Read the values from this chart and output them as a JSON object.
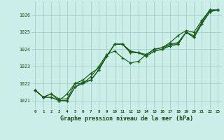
{
  "title": "Graphe pression niveau de la mer (hPa)",
  "bg_color": "#cceee8",
  "grid_color": "#aad4ce",
  "line_color": "#1a5c1a",
  "xlim": [
    -0.5,
    23.5
  ],
  "ylim": [
    1020.5,
    1026.8
  ],
  "yticks": [
    1021,
    1022,
    1023,
    1024,
    1025,
    1026
  ],
  "xticks": [
    0,
    1,
    2,
    3,
    4,
    5,
    6,
    7,
    8,
    9,
    10,
    11,
    12,
    13,
    14,
    15,
    16,
    17,
    18,
    19,
    20,
    21,
    22,
    23
  ],
  "series": [
    [
      1021.6,
      1021.2,
      1021.4,
      1021.0,
      1021.4,
      1022.0,
      1022.2,
      1022.6,
      1022.9,
      1023.6,
      1024.3,
      1024.3,
      1023.8,
      1023.8,
      1023.6,
      1023.9,
      1024.0,
      1024.3,
      1024.3,
      1025.0,
      1024.7,
      1025.5,
      1026.2,
      1026.3
    ],
    [
      1021.6,
      1021.2,
      1021.2,
      1021.0,
      1021.0,
      1021.8,
      1022.0,
      1022.2,
      1022.8,
      1023.6,
      1024.3,
      1024.3,
      1023.9,
      1023.8,
      1023.7,
      1024.0,
      1024.1,
      1024.3,
      1024.4,
      1025.0,
      1024.8,
      1025.6,
      1026.3,
      1026.3
    ],
    [
      1021.6,
      1021.2,
      1021.4,
      1021.1,
      1021.1,
      1022.0,
      1022.0,
      1022.4,
      1023.0,
      1023.7,
      1023.9,
      1023.5,
      1023.2,
      1023.3,
      1023.7,
      1024.0,
      1024.1,
      1024.4,
      1024.8,
      1025.1,
      1025.0,
      1025.7,
      1026.3,
      1026.3
    ],
    [
      1021.6,
      1021.2,
      1021.2,
      1021.0,
      1021.0,
      1021.8,
      1022.1,
      1022.2,
      1022.8,
      1023.6,
      1024.3,
      1024.3,
      1023.8,
      1023.8,
      1023.6,
      1023.9,
      1024.0,
      1024.2,
      1024.3,
      1025.0,
      1024.7,
      1025.5,
      1026.2,
      1026.3
    ]
  ]
}
